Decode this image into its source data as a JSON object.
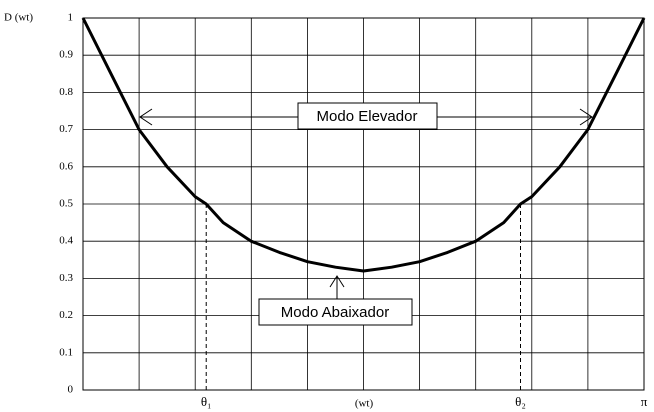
{
  "chart_data": {
    "type": "line",
    "ylabel": "D (wt)",
    "xlabel": "(wt)",
    "annotations": [
      "Modo Elevador",
      "Modo Abaixador"
    ],
    "x": [
      0,
      0.157,
      0.314,
      0.471,
      0.628,
      0.69,
      0.785,
      0.942,
      1.1,
      1.257,
      1.414,
      1.571,
      1.728,
      1.885,
      2.042,
      2.199,
      2.356,
      2.45,
      2.513,
      2.67,
      2.827,
      2.985,
      3.14159
    ],
    "values": [
      1.0,
      0.85,
      0.7,
      0.6,
      0.52,
      0.5,
      0.45,
      0.4,
      0.37,
      0.345,
      0.33,
      0.32,
      0.33,
      0.345,
      0.37,
      0.4,
      0.45,
      0.5,
      0.52,
      0.6,
      0.7,
      0.85,
      1.0
    ],
    "color": "#000000",
    "xlim": [
      0,
      3.14159
    ],
    "ylim": [
      0,
      1
    ],
    "xticks": [
      {
        "value": 0.69,
        "label": "θ₁"
      },
      {
        "value": 2.45,
        "label": "θ₂"
      },
      {
        "value": 3.14159,
        "label": "π"
      }
    ],
    "yticks": [
      0,
      0.1,
      0.2,
      0.3,
      0.4,
      0.5,
      0.6,
      0.7,
      0.8,
      0.9,
      1
    ],
    "grid": true
  }
}
